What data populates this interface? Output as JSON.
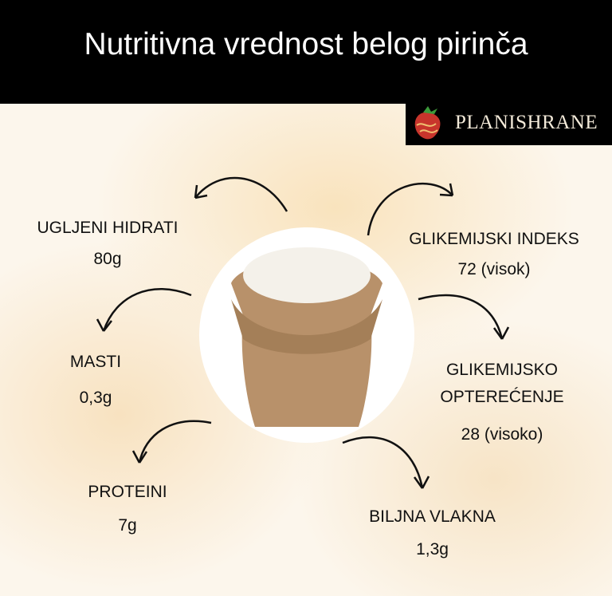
{
  "title": "Nutritivna vrednost belog pirinča",
  "logo": {
    "text": "PLANISHRANE",
    "icon": "strawberry-icon"
  },
  "items": [
    {
      "label": "UGLJENI HIDRATI",
      "value": "80g"
    },
    {
      "label": "MASTI",
      "value": "0,3g"
    },
    {
      "label": "PROTEINI",
      "value": "7g"
    },
    {
      "label": "GLIKEMIJSKI INDEKS",
      "value": "72 (visok)"
    },
    {
      "label": "GLIKEMIJSKO",
      "label2": "OPTEREĆENJE",
      "value": "28 (visoko)"
    },
    {
      "label": "BILJNA VLAKNA",
      "value": "1,3g"
    }
  ],
  "image": "rice-sack"
}
